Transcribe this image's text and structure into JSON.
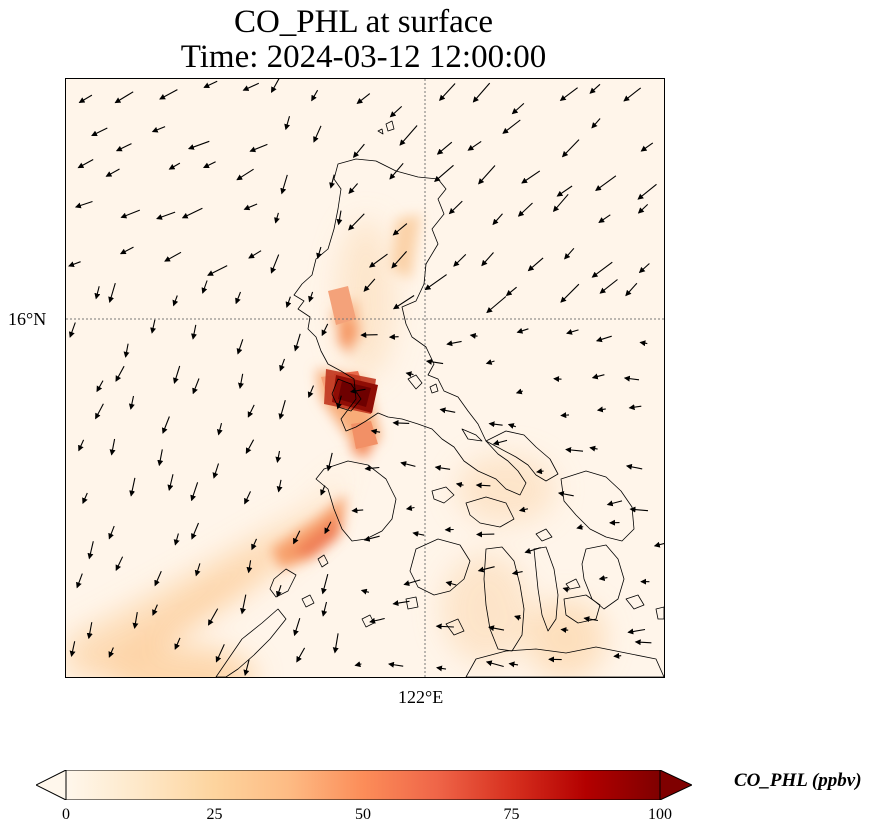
{
  "title": {
    "line1": "CO_PHL at surface",
    "line2": "Time: 2024-03-12 12:00:00"
  },
  "axes": {
    "lat_tick": "16°N",
    "lon_tick": "122°E",
    "gridline_style": "dotted",
    "projection": "lat-lon"
  },
  "colorbar": {
    "label": "CO_PHL (ppbv)",
    "colormap": "OrRd",
    "min": 0,
    "max": 100,
    "extend": "both",
    "ticks": [
      "0",
      "25",
      "50",
      "75",
      "100"
    ],
    "colors": [
      "#fff7ec",
      "#fee8c8",
      "#fdd49e",
      "#fdbb84",
      "#fc8d59",
      "#ef6548",
      "#d7301f",
      "#b30000",
      "#7f0000"
    ]
  },
  "map": {
    "background_color": "#fff5ea",
    "vector_field": "wind arrows"
  }
}
